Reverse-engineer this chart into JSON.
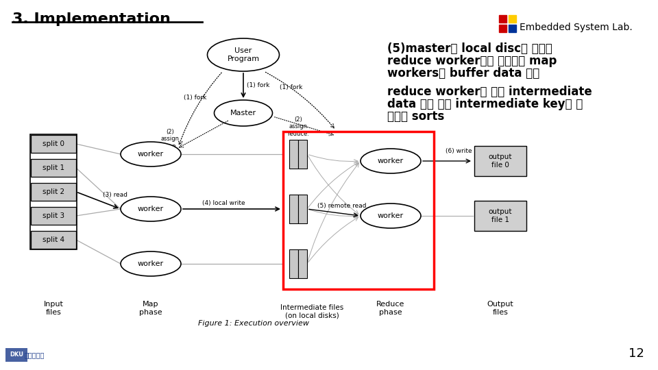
{
  "title": "3. Implementation",
  "title_fontsize": 16,
  "title_color": "#000000",
  "header_logo_text": "Embedded System Lab.",
  "underline_color": "#000000",
  "bg_color": "#ffffff",
  "text_block1_lines": [
    "(5)master가 local disc의 위치를",
    "reduce worker에게 통보하면 map",
    "workers의 buffer data 읽을"
  ],
  "text_block2_lines": [
    "reduce worker가 모든 intermediate",
    "data 읽을 경우 intermediate key를 기",
    "준으로 sorts"
  ],
  "text_fontsize": 12,
  "page_number": "12",
  "logo_colors": [
    "#cc0000",
    "#ffcc00",
    "#003399"
  ]
}
